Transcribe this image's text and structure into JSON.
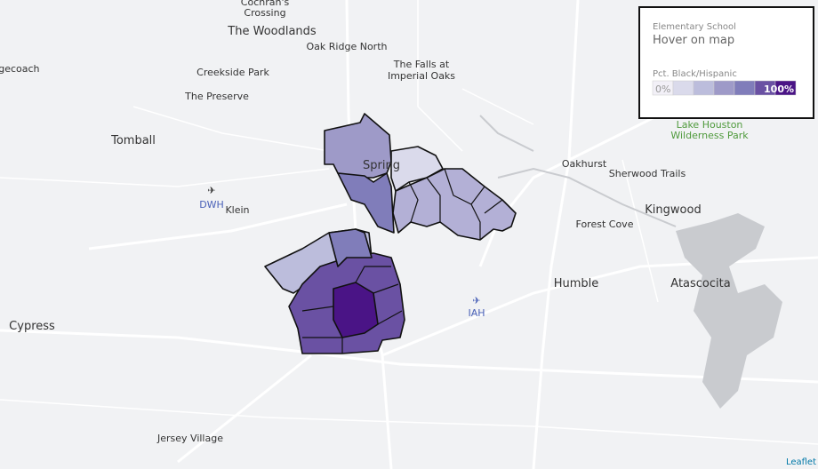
{
  "legend": {
    "title": "Elementary School",
    "subtitle": "Hover on map",
    "scale_label": "Pct. Black/Hispanic",
    "min_label": "0%",
    "max_label": "100%"
  },
  "places": [
    {
      "lines": [
        "Cochran's",
        "Crossing"
      ]
    },
    {
      "lines": [
        "The Woodlands"
      ]
    },
    {
      "lines": [
        "Oak Ridge North"
      ]
    },
    {
      "lines": [
        "The Falls at",
        "Imperial Oaks"
      ]
    },
    {
      "lines": [
        "agecoach"
      ]
    },
    {
      "lines": [
        "Creekside Park"
      ]
    },
    {
      "lines": [
        "The Preserve"
      ]
    },
    {
      "lines": [
        "Tomball"
      ]
    },
    {
      "lines": [
        "Spring"
      ]
    },
    {
      "lines": [
        "Klein"
      ]
    },
    {
      "lines": [
        "Oakhurst"
      ]
    },
    {
      "lines": [
        "Sherwood Trails"
      ]
    },
    {
      "lines": [
        "Kingwood"
      ]
    },
    {
      "lines": [
        "Forest Cove"
      ]
    },
    {
      "lines": [
        "Humble"
      ]
    },
    {
      "lines": [
        "Atascocita"
      ]
    },
    {
      "lines": [
        "Cypress"
      ]
    },
    {
      "lines": [
        "Jersey Village"
      ]
    }
  ],
  "airports": [
    "DWH",
    "IAH"
  ],
  "park": [
    "Lake Houston",
    "Wilderness Park"
  ],
  "attribution": "Leaflet"
}
